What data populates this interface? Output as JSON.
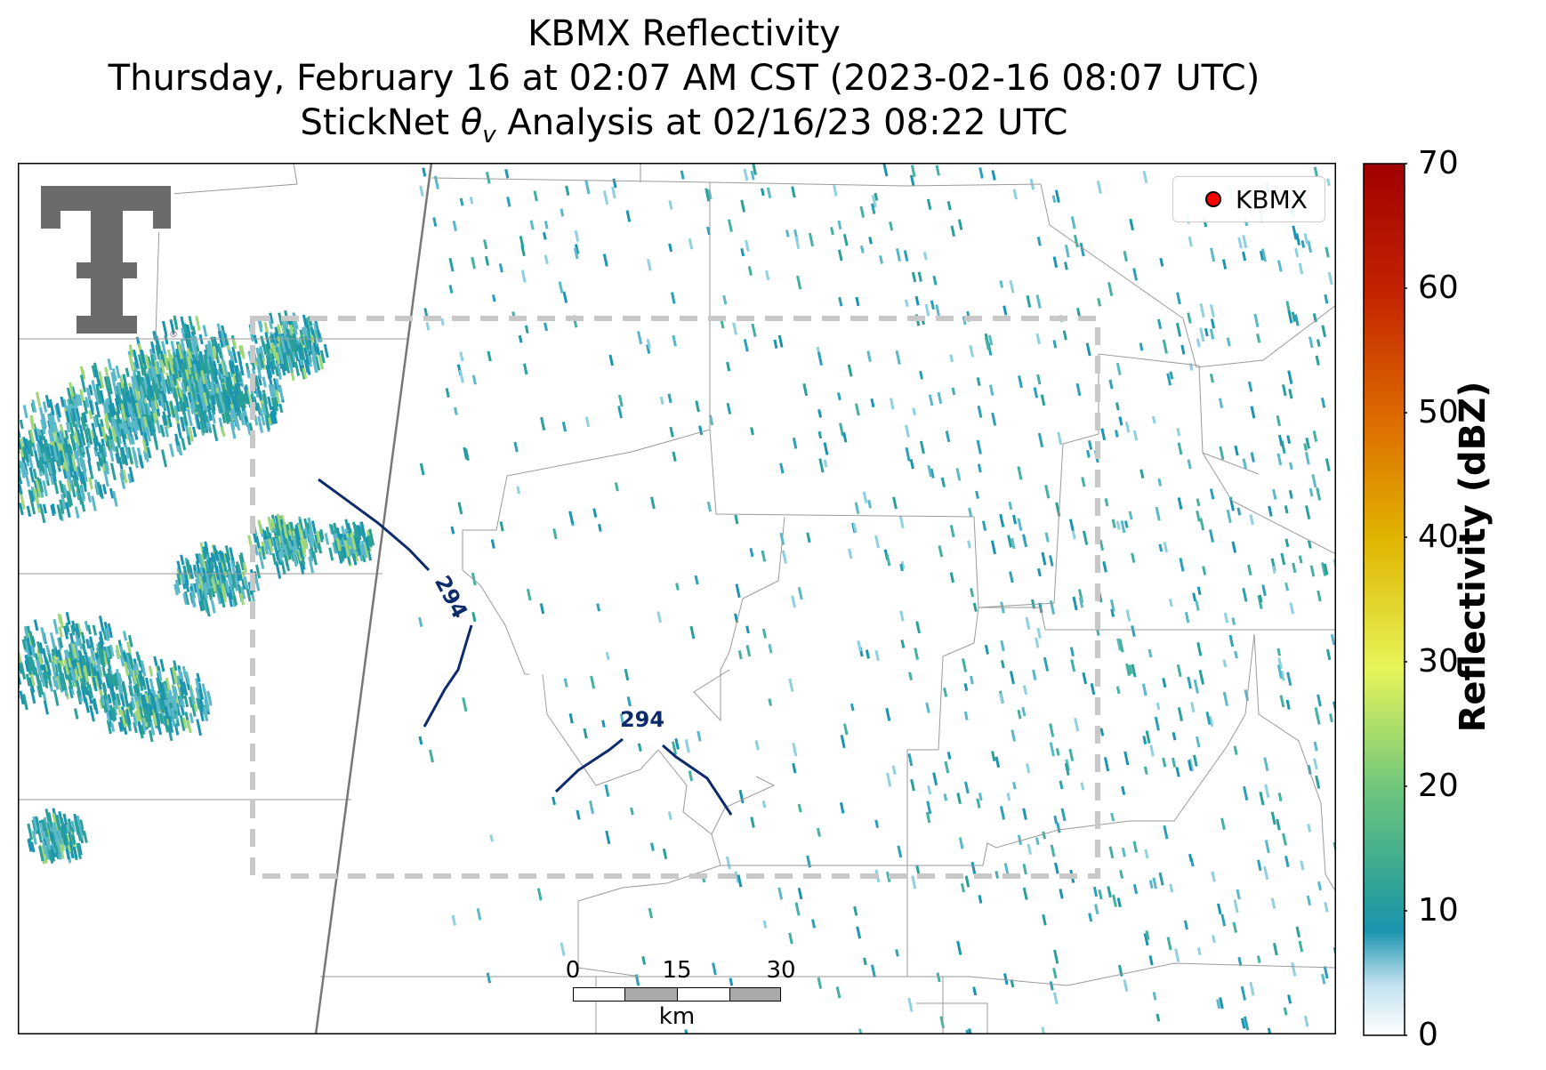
{
  "title": {
    "line1": "KBMX Reflectivity",
    "line2": "Thursday, February 16 at 02:07 AM CST (2023-02-16 08:07 UTC)",
    "line3_prefix": "StickNet ",
    "line3_symbol": "θ",
    "line3_subscript": "v",
    "line3_suffix": " Analysis at 02/16/23 08:22 UTC"
  },
  "legend": {
    "marker_label": "KBMX",
    "marker_color": "#ff0000"
  },
  "colorbar": {
    "label": "Reflectivity (dBZ)",
    "ticks": [
      "0",
      "10",
      "20",
      "30",
      "40",
      "50",
      "60",
      "70"
    ],
    "range": [
      0,
      70
    ],
    "colors": [
      "#ffffff",
      "#1b94b0",
      "#5cc08a",
      "#e8f55a",
      "#e0b000",
      "#e07000",
      "#c02000",
      "#a00000"
    ]
  },
  "contours": {
    "value_label": "294",
    "color": "#0d2a6b"
  },
  "scale_bar": {
    "ticks": [
      "0",
      "15",
      "30"
    ],
    "unit": "km"
  },
  "logo": {
    "name": "Texas Tech Double T",
    "color": "#6b6b6b"
  },
  "colors": {
    "analysis_box": "#c8c8c8",
    "county_lines": "#9a9a9a",
    "state_line": "#777777"
  }
}
